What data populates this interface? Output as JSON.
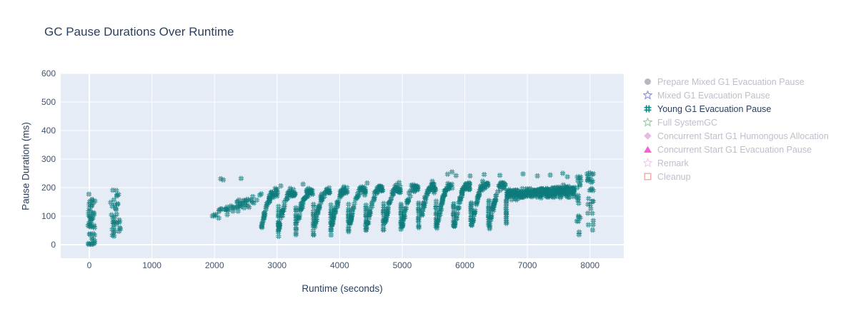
{
  "chart_data": {
    "type": "scatter",
    "title": "GC Pause Durations Over Runtime",
    "xlabel": "Runtime (seconds)",
    "ylabel": "Pause Duration (ms)",
    "x_ticks": [
      0,
      1000,
      2000,
      3000,
      4000,
      5000,
      6000,
      7000,
      8000
    ],
    "y_ticks": [
      0,
      100,
      200,
      300,
      400,
      500,
      600
    ],
    "x_range": [
      -457,
      8540
    ],
    "y_range": [
      -47.5,
      600
    ],
    "grid": true,
    "legend_position": "right",
    "plot_bg": "#e5ecf6",
    "grid_color": "#ffffff",
    "series": [
      {
        "label": "Prepare Mixed G1 Evacuation Pause",
        "marker": "circle-fill",
        "color": "#b6b8bf",
        "visible": false
      },
      {
        "label": "Mixed G1 Evacuation Pause",
        "marker": "star-open",
        "color": "#8e93e9",
        "visible": false
      },
      {
        "label": "Young G1 Evacuation Pause",
        "marker": "hash",
        "color": "#128484",
        "visible": true
      },
      {
        "label": "Full SystemGC",
        "marker": "star-open",
        "color": "#96d0a5",
        "visible": false
      },
      {
        "label": "Concurrent Start G1 Humongous Allocation",
        "marker": "diamond-fill",
        "color": "#e6bbe2",
        "visible": false
      },
      {
        "label": "Concurrent Start G1 Evacuation Pause",
        "marker": "triangle-fill",
        "color": "#f65fd8",
        "visible": false
      },
      {
        "label": "Remark",
        "marker": "star-open",
        "color": "#f4cde8",
        "visible": false
      },
      {
        "label": "Cleanup",
        "marker": "square-open",
        "color": "#f2a19b",
        "visible": false
      }
    ],
    "young_g1_points_model": {
      "seed": 42,
      "marker_px": 7.2,
      "point_color": "#0e7c7c",
      "point_opacity": 0.72,
      "clusters": [
        {
          "kind": "vstrip",
          "x0": -20,
          "x1": 90,
          "y0": 0,
          "y1": 178,
          "n": 46,
          "bias": 1.3
        },
        {
          "kind": "vstrip",
          "x0": 340,
          "x1": 500,
          "y0": 25,
          "y1": 192,
          "n": 34,
          "bias": 1.0
        },
        {
          "kind": "ramp",
          "x0": 1950,
          "x1": 2760,
          "ya": 100,
          "yb": 168,
          "spread": 16,
          "n": 50
        },
        {
          "kind": "sawtooth",
          "x0": 2750,
          "x1": 6670,
          "period": 280,
          "base": 62,
          "peak0": 182,
          "peak1": 212,
          "tail_low0": 28,
          "tail_low1": 75,
          "arch_n": 46,
          "tail_n": 13,
          "jitter": 14
        },
        {
          "kind": "band",
          "x0": 6670,
          "x1": 7755,
          "ya": 176,
          "yb": 188,
          "spread": 17,
          "n": 330
        },
        {
          "kind": "vstrip",
          "x0": 7790,
          "x1": 7860,
          "y0": 12,
          "y1": 248,
          "n": 20,
          "bias": 0.85
        },
        {
          "kind": "vstrip",
          "x0": 7955,
          "x1": 8060,
          "y0": 28,
          "y1": 252,
          "n": 26,
          "bias": 0.7
        },
        {
          "kind": "points",
          "pts": [
            [
              2100,
              231
            ],
            [
              2140,
              227
            ],
            [
              2425,
              232
            ],
            [
              3060,
              206
            ],
            [
              3415,
              212
            ],
            [
              4440,
              216
            ],
            [
              4950,
              218
            ],
            [
              5480,
              222
            ],
            [
              5725,
              247
            ],
            [
              5795,
              255
            ],
            [
              5860,
              242
            ],
            [
              6085,
              241
            ],
            [
              6310,
              246
            ],
            [
              6560,
              243
            ],
            [
              6930,
              248
            ],
            [
              7160,
              241
            ],
            [
              7365,
              244
            ],
            [
              7565,
              250
            ],
            [
              7640,
              238
            ],
            [
              7995,
              252
            ]
          ]
        }
      ]
    },
    "text_colors": {
      "title": "#2a3f5f",
      "ticks": "#42526b",
      "legend_active": "#2a3f5f",
      "legend_inactive": "#bcc0cb"
    }
  }
}
